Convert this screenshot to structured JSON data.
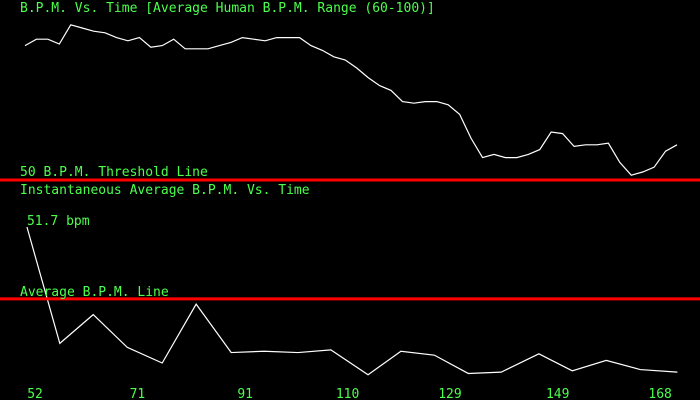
{
  "chart_data": [
    {
      "type": "line",
      "title": "B.P.M. Vs. Time [Average Human B.P.M. Range (60-100)]",
      "values": [
        92,
        94,
        94,
        92.5,
        98.5,
        97.5,
        96.5,
        96,
        94.5,
        93.5,
        94.5,
        91.5,
        92,
        94,
        91,
        91,
        91,
        92,
        93,
        94.5,
        94,
        93.5,
        94.5,
        94.5,
        94.5,
        92,
        90.5,
        88.5,
        87.5,
        85,
        82,
        79.5,
        78,
        74.5,
        74,
        74.5,
        74.5,
        73.5,
        70.5,
        63,
        57,
        58,
        57,
        57,
        58,
        59.5,
        65,
        64.5,
        60.5,
        61,
        61,
        61.5,
        55.5,
        51.5,
        52.5,
        54,
        59,
        61
      ],
      "color": "#ffffff",
      "ylim": [
        50,
        100
      ],
      "reference_line": {
        "value": 50,
        "label": "50 B.P.M. Threshold Line",
        "color": "#ff0000"
      }
    },
    {
      "type": "line",
      "title": "Instantaneous Average B.P.M. Vs. Time",
      "x": [
        50.5,
        56.6,
        62.8,
        69.1,
        75.6,
        81.9,
        88.4,
        94.5,
        100.8,
        106.9,
        113.8,
        119.9,
        126.1,
        132.4,
        138.5,
        145.5,
        151.7,
        158,
        164.3,
        171.2
      ],
      "values": [
        51.7,
        42.8,
        45,
        42.5,
        41.3,
        45.8,
        42.1,
        42.2,
        42.1,
        42.3,
        40.4,
        42.2,
        41.9,
        40.5,
        40.6,
        42,
        40.7,
        41.5,
        40.8,
        40.6
      ],
      "value_labels": [
        "51.7 bpm",
        null,
        null,
        null,
        null,
        null,
        null,
        null,
        null,
        null,
        null,
        null,
        null,
        null,
        null,
        null,
        null,
        null,
        null,
        null
      ],
      "color": "#ffffff",
      "xlim": [
        45.5,
        175.4
      ],
      "xticks": [
        52,
        71,
        91,
        110,
        129,
        149,
        168
      ],
      "ylim": [
        40,
        53
      ],
      "reference_line": {
        "value": 46.2,
        "label": "Average B.P.M. Line",
        "color": "#ff0000"
      }
    }
  ]
}
